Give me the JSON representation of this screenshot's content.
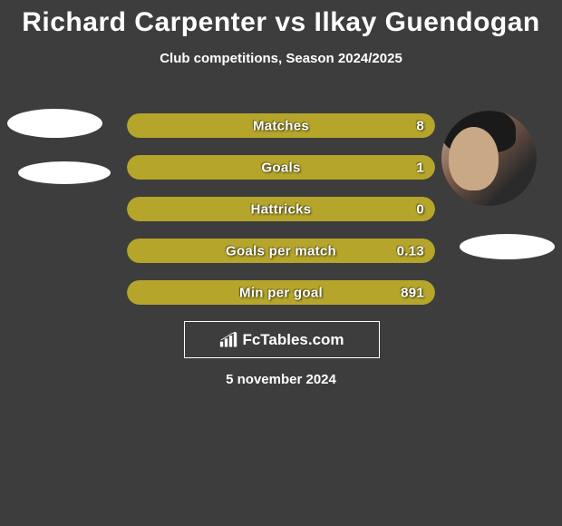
{
  "title": "Richard Carpenter vs Ilkay Guendogan",
  "subtitle": "Club competitions, Season 2024/2025",
  "date": "5 november 2024",
  "logo_text": "FcTables.com",
  "bar_color": "#b5a52b",
  "bar_bg_color": "#2e2e2e",
  "text_color": "#ffffff",
  "background_color": "#3d3d3d",
  "bars": [
    {
      "label": "Matches",
      "value": "8",
      "fill_percent": 100
    },
    {
      "label": "Goals",
      "value": "1",
      "fill_percent": 100
    },
    {
      "label": "Hattricks",
      "value": "0",
      "fill_percent": 100
    },
    {
      "label": "Goals per match",
      "value": "0.13",
      "fill_percent": 100
    },
    {
      "label": "Min per goal",
      "value": "891",
      "fill_percent": 100
    }
  ]
}
